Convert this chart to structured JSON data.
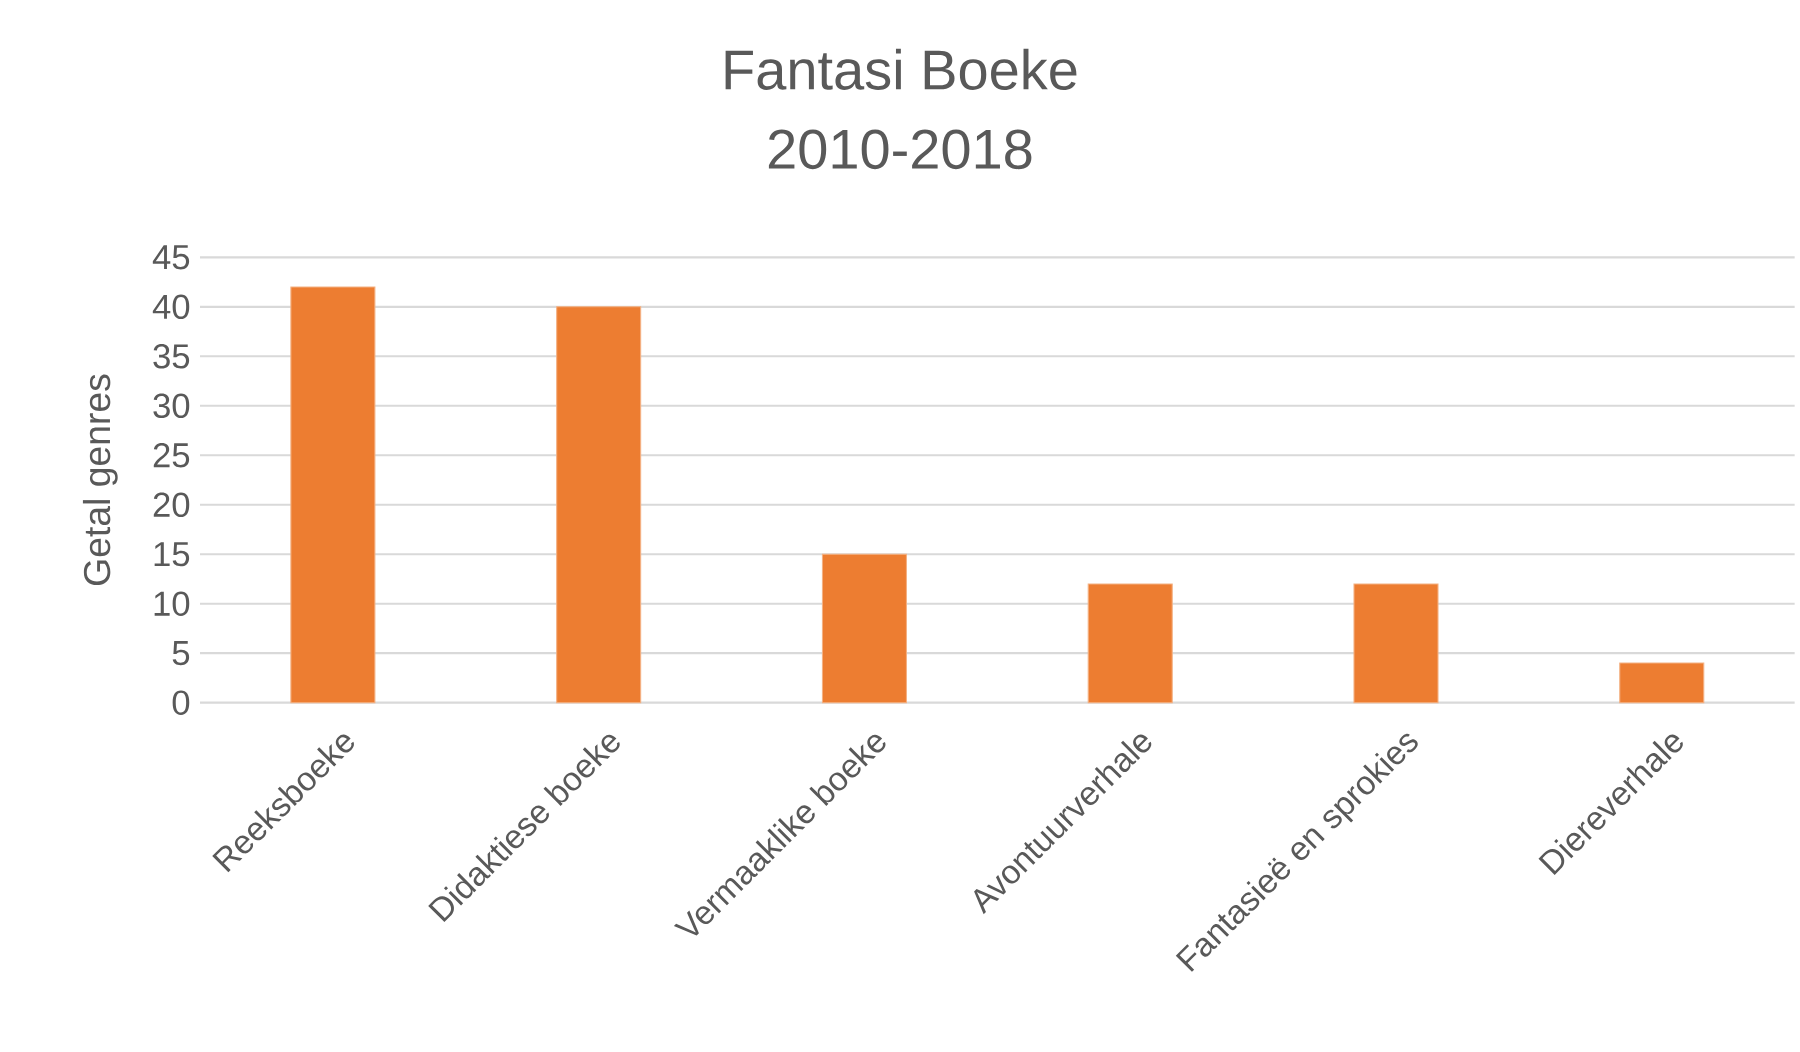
{
  "chart_data": {
    "type": "bar",
    "title": "Fantasi Boeke",
    "subtitle": "2010-2018",
    "ylabel": "Getal genres",
    "categories": [
      "Reeksboeke",
      "Didaktiese boeke",
      "Vermaaklike boeke",
      "Avontuurverhale",
      "Fantasieë en sprokies",
      "Diereverhale"
    ],
    "values": [
      42,
      40,
      15,
      12,
      12,
      4
    ],
    "color": "#ed7d31",
    "ylim": [
      0,
      45
    ],
    "yticks": [
      0,
      5,
      10,
      15,
      20,
      25,
      30,
      35,
      40,
      45
    ],
    "grid": "y"
  }
}
